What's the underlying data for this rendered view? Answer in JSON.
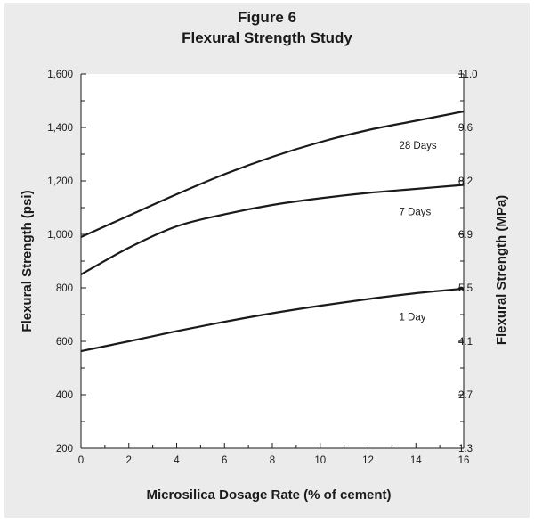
{
  "chart_data": {
    "type": "line",
    "title": "Figure 6",
    "subtitle": "Flexural Strength Study",
    "xlabel": "Microsilica Dosage Rate (% of cement)",
    "ylabel": "Flexural Strength (psi)",
    "y2label": "Flexural Strength (MPa)",
    "xlim": [
      0,
      16
    ],
    "ylim": [
      200,
      1600
    ],
    "grid": false,
    "x_ticks": [
      0,
      2,
      4,
      6,
      8,
      10,
      12,
      14,
      16
    ],
    "x_tick_labels": [
      "0",
      "2",
      "4",
      "6",
      "8",
      "10",
      "12",
      "14",
      "16"
    ],
    "y_ticks": [
      200,
      400,
      600,
      800,
      1000,
      1200,
      1400,
      1600
    ],
    "y_tick_labels": [
      "200",
      "400",
      "600",
      "800",
      "1,000",
      "1,200",
      "1,400",
      "1,600"
    ],
    "y_minor_ticks": [
      300,
      500,
      700,
      900,
      1100,
      1300,
      1500
    ],
    "y2_ticks": [
      1.3,
      2.7,
      4.1,
      5.5,
      6.9,
      8.2,
      9.6,
      11.0
    ],
    "y2_tick_labels": [
      "1.3",
      "2.7",
      "4.1",
      "5.5",
      "6.9",
      "8.2",
      "9.6",
      "11.0"
    ],
    "series": [
      {
        "name": "28 Days",
        "x": [
          0,
          2,
          4,
          6,
          8,
          10,
          12,
          14,
          16
        ],
        "values": [
          990,
          1070,
          1150,
          1225,
          1290,
          1345,
          1390,
          1425,
          1460
        ]
      },
      {
        "name": "7 Days",
        "x": [
          0,
          2,
          4,
          6,
          8,
          10,
          12,
          14,
          16
        ],
        "values": [
          850,
          950,
          1030,
          1075,
          1110,
          1135,
          1155,
          1170,
          1185
        ]
      },
      {
        "name": "1 Day",
        "x": [
          0,
          2,
          4,
          6,
          8,
          10,
          12,
          14,
          16
        ],
        "values": [
          563,
          600,
          638,
          673,
          705,
          733,
          758,
          780,
          797
        ]
      }
    ]
  }
}
